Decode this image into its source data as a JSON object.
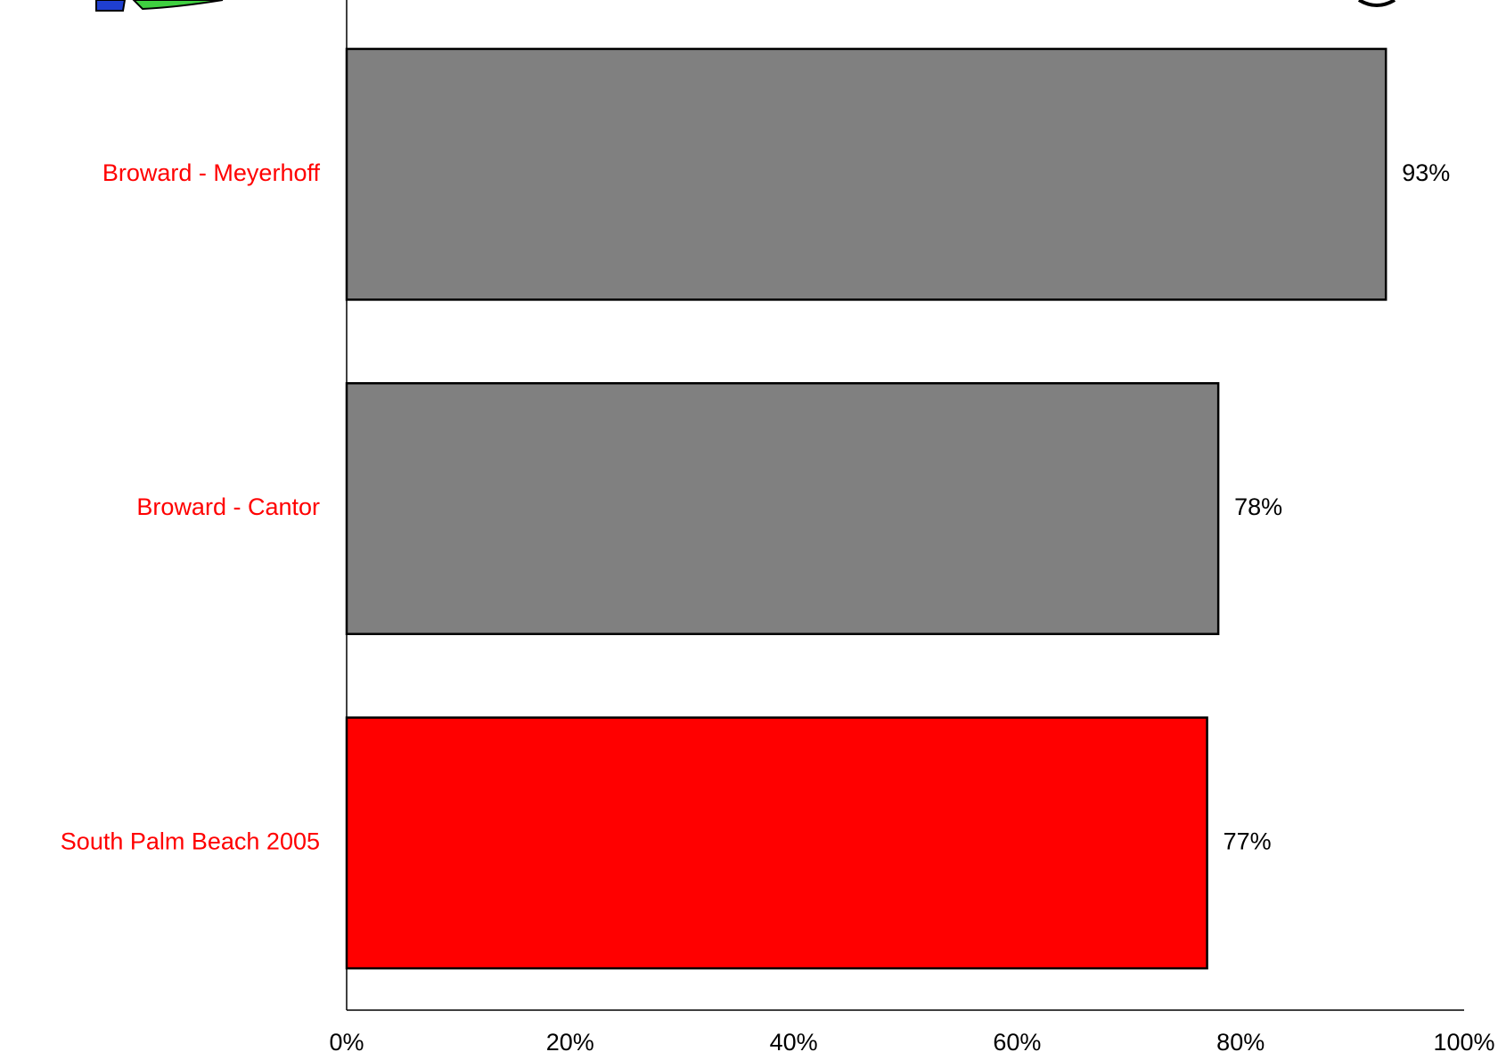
{
  "chart_data": {
    "type": "bar",
    "orientation": "horizontal",
    "categories": [
      "Broward  - Meyerhoff",
      "Broward - Cantor",
      "South Palm Beach 2005"
    ],
    "values": [
      93,
      78,
      77
    ],
    "value_labels": [
      "93%",
      "78%",
      "77%"
    ],
    "xlim": [
      0,
      100
    ],
    "x_ticks": [
      0,
      20,
      40,
      60,
      80,
      100
    ],
    "x_tick_labels": [
      "0%",
      "20%",
      "40%",
      "60%",
      "80%",
      "100%"
    ],
    "grid": false,
    "legend": "none",
    "colors": {
      "bars": [
        "#808080",
        "#808080",
        "#ff0000"
      ],
      "category_labels": "#ff0000",
      "bar_outline": "#000000"
    }
  }
}
